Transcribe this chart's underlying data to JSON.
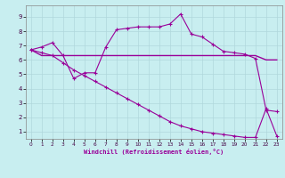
{
  "background_color": "#c8eef0",
  "line_color": "#990099",
  "grid_color": "#b0d8dc",
  "xlabel": "Windchill (Refroidissement éolien,°C)",
  "x_ticks": [
    0,
    1,
    2,
    3,
    4,
    5,
    6,
    7,
    8,
    9,
    10,
    11,
    12,
    13,
    14,
    15,
    16,
    17,
    18,
    19,
    20,
    21,
    22,
    23
  ],
  "y_ticks": [
    1,
    2,
    3,
    4,
    5,
    6,
    7,
    8,
    9
  ],
  "ylim": [
    0.5,
    9.8
  ],
  "xlim": [
    -0.5,
    23.5
  ],
  "line1_x": [
    0,
    1,
    2,
    3,
    4,
    5,
    6,
    7,
    8,
    9,
    10,
    11,
    12,
    13,
    14,
    15,
    16,
    17,
    18,
    19,
    20,
    21,
    22,
    23
  ],
  "line1_y": [
    6.7,
    6.9,
    7.2,
    6.3,
    4.7,
    5.1,
    5.1,
    6.9,
    8.1,
    8.2,
    8.3,
    8.3,
    8.3,
    8.5,
    9.2,
    7.8,
    7.6,
    7.1,
    6.6,
    6.5,
    6.4,
    6.1,
    2.5,
    2.4
  ],
  "line2_x": [
    0,
    1,
    2,
    3,
    4,
    5,
    6,
    7,
    8,
    9,
    10,
    11,
    12,
    13,
    14,
    15,
    16,
    17,
    18,
    19,
    20,
    21,
    22,
    23
  ],
  "line2_y": [
    6.7,
    6.3,
    6.3,
    6.3,
    6.3,
    6.3,
    6.3,
    6.3,
    6.3,
    6.3,
    6.3,
    6.3,
    6.3,
    6.3,
    6.3,
    6.3,
    6.3,
    6.3,
    6.3,
    6.3,
    6.3,
    6.3,
    6.0,
    6.0
  ],
  "line3_x": [
    0,
    1,
    2,
    3,
    4,
    5,
    6,
    7,
    8,
    9,
    10,
    11,
    12,
    13,
    14,
    15,
    16,
    17,
    18,
    19,
    20,
    21,
    22,
    23
  ],
  "line3_y": [
    6.7,
    6.5,
    6.3,
    5.8,
    5.3,
    4.9,
    4.5,
    4.1,
    3.7,
    3.3,
    2.9,
    2.5,
    2.1,
    1.7,
    1.4,
    1.2,
    1.0,
    0.9,
    0.8,
    0.7,
    0.6,
    0.6,
    2.6,
    0.7
  ]
}
